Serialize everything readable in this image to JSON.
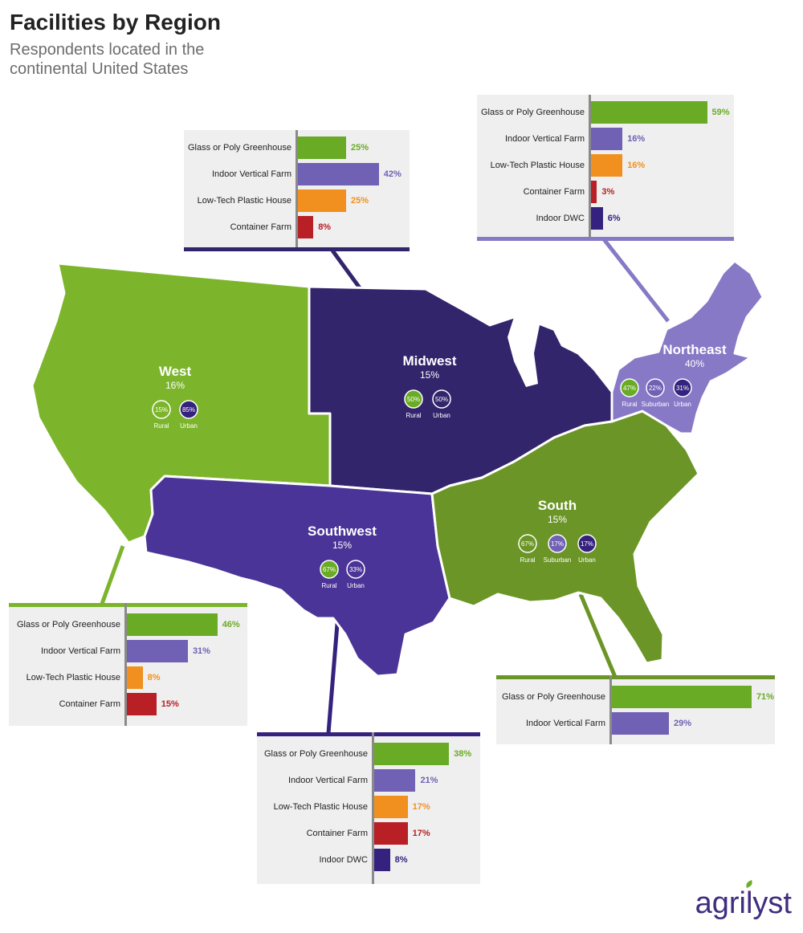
{
  "title": "Facilities by Region",
  "subtitle": "Respondents located in the continental United States",
  "logo": "agrilyst",
  "colors": {
    "greenhouse": "#6aab25",
    "vertical": "#7061b4",
    "plastic": "#f1901f",
    "container": "#b82025",
    "dwc": "#34227e",
    "west": "#7cb52c",
    "midwest": "#33256c",
    "southwest": "#4a3497",
    "south": "#6b9526",
    "northeast": "#8779c6"
  },
  "regions": [
    {
      "id": "west",
      "name": "West",
      "pct": "16%",
      "circles": [
        {
          "label": "Rural",
          "value": "15%"
        },
        {
          "label": "Urban",
          "value": "85%"
        }
      ]
    },
    {
      "id": "midwest",
      "name": "Midwest",
      "pct": "15%",
      "circles": [
        {
          "label": "Rural",
          "value": "50%"
        },
        {
          "label": "Urban",
          "value": "50%"
        }
      ]
    },
    {
      "id": "southwest",
      "name": "Southwest",
      "pct": "15%",
      "circles": [
        {
          "label": "Rural",
          "value": "67%"
        },
        {
          "label": "Urban",
          "value": "33%"
        }
      ]
    },
    {
      "id": "south",
      "name": "South",
      "pct": "15%",
      "circles": [
        {
          "label": "Rural",
          "value": "67%"
        },
        {
          "label": "Suburban",
          "value": "17%"
        },
        {
          "label": "Urban",
          "value": "17%"
        }
      ]
    },
    {
      "id": "northeast",
      "name": "Northeast",
      "pct": "40%",
      "circles": [
        {
          "label": "Rural",
          "value": "47%"
        },
        {
          "label": "Suburban",
          "value": "22%"
        },
        {
          "label": "Urban",
          "value": "31%"
        }
      ]
    }
  ],
  "chart_data": [
    {
      "type": "bar",
      "region": "Midwest",
      "categories": [
        "Glass or Poly Greenhouse",
        "Indoor Vertical Farm",
        "Low-Tech Plastic House",
        "Container Farm"
      ],
      "values": [
        25,
        42,
        25,
        8
      ],
      "value_labels": [
        "25%",
        "42%",
        "25%",
        "8%"
      ],
      "orientation": "horizontal",
      "xlim": [
        0,
        100
      ]
    },
    {
      "type": "bar",
      "region": "Northeast",
      "categories": [
        "Glass or Poly Greenhouse",
        "Indoor Vertical Farm",
        "Low-Tech Plastic House",
        "Container Farm",
        "Indoor DWC"
      ],
      "values": [
        59,
        16,
        16,
        3,
        6
      ],
      "value_labels": [
        "59%",
        "16%",
        "16%",
        "3%",
        "6%"
      ],
      "orientation": "horizontal",
      "xlim": [
        0,
        100
      ]
    },
    {
      "type": "bar",
      "region": "West",
      "categories": [
        "Glass or Poly Greenhouse",
        "Indoor Vertical Farm",
        "Low-Tech Plastic House",
        "Container Farm"
      ],
      "values": [
        46,
        31,
        8,
        15
      ],
      "value_labels": [
        "46%",
        "31%",
        "8%",
        "15%"
      ],
      "orientation": "horizontal",
      "xlim": [
        0,
        100
      ]
    },
    {
      "type": "bar",
      "region": "South",
      "categories": [
        "Glass or Poly Greenhouse",
        "Indoor Vertical Farm"
      ],
      "values": [
        71,
        29
      ],
      "value_labels": [
        "71%",
        "29%"
      ],
      "orientation": "horizontal",
      "xlim": [
        0,
        100
      ]
    },
    {
      "type": "bar",
      "region": "Southwest",
      "categories": [
        "Glass or Poly Greenhouse",
        "Indoor Vertical Farm",
        "Low-Tech Plastic House",
        "Container Farm",
        "Indoor DWC"
      ],
      "values": [
        38,
        21,
        17,
        17,
        8
      ],
      "value_labels": [
        "38%",
        "21%",
        "17%",
        "17%",
        "8%"
      ],
      "orientation": "horizontal",
      "xlim": [
        0,
        100
      ]
    }
  ]
}
